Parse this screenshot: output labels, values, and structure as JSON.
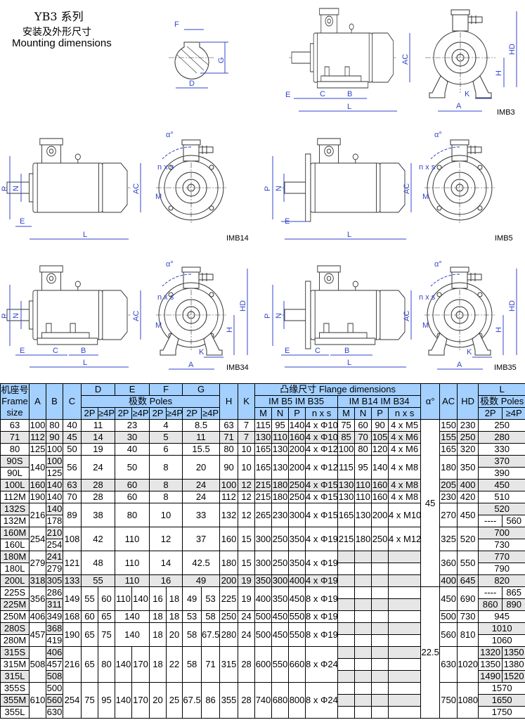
{
  "title": {
    "series": "YB3 系列",
    "cn": "安装及外形尺寸",
    "en": "Mounting dimensions"
  },
  "colors": {
    "dimension": "#3344cc",
    "header_bg": "#a3d0ff",
    "shade": "#e6e6e6"
  },
  "labels": {
    "F": "F",
    "G": "G",
    "D": "D",
    "E": "E",
    "C": "C",
    "B": "B",
    "L": "L",
    "AC": "AC",
    "HD": "HD",
    "H": "H",
    "K": "K",
    "A": "A",
    "P": "P",
    "N": "N",
    "M": "M",
    "nxs": "n x s",
    "alpha": "α°",
    "imb3": "IMB3",
    "imb14": "IMB14",
    "imb5": "IMB5",
    "imb34": "IMB34",
    "imb35": "IMB35"
  },
  "table": {
    "header": {
      "frame": [
        "机座号",
        "Frame",
        "size"
      ],
      "A": "A",
      "B": "B",
      "C": "C",
      "D": "D",
      "E": "E",
      "F": "F",
      "G": "G",
      "H": "H",
      "K": "K",
      "flange": "凸缘尺寸   Flange dimensions",
      "alpha": "α°",
      "AC": "AC",
      "HD": "HD",
      "L": "L",
      "poles": "极数    Poles",
      "poles_L": "极数 Poles",
      "b5": "IM B5    IM B35",
      "b14": "IM B14    IM B34",
      "p2": "2P",
      "p4": "≥4P",
      "M": "M",
      "N": "N",
      "P": "P",
      "nxs": "n x s"
    },
    "alpha": [
      {
        "value": "45",
        "group_count": 10
      },
      {
        "value": "22.5",
        "group_count": 5
      }
    ],
    "groups": [
      {
        "frames": [
          "63"
        ],
        "A": "100",
        "B": [
          "80"
        ],
        "C": "40",
        "D": [
          "11"
        ],
        "E": [
          "23"
        ],
        "F": [
          "4"
        ],
        "G": [
          "8.5"
        ],
        "H": "63",
        "K": "7",
        "b5": [
          "115",
          "95",
          "140",
          "4 x Φ10"
        ],
        "b14": [
          "75",
          "60",
          "90",
          "4 x M5"
        ],
        "AC": "150",
        "HD": "230",
        "L": [
          [
            "250"
          ]
        ]
      },
      {
        "frames": [
          "71"
        ],
        "A": "112",
        "B": [
          "90"
        ],
        "C": "45",
        "D": [
          "14"
        ],
        "E": [
          "30"
        ],
        "F": [
          "5"
        ],
        "G": [
          "11"
        ],
        "H": "71",
        "K": "7",
        "b5": [
          "130",
          "110",
          "160",
          "4 x Φ10"
        ],
        "b14": [
          "85",
          "70",
          "105",
          "4 x M6"
        ],
        "AC": "155",
        "HD": "250",
        "L": [
          [
            "280"
          ]
        ]
      },
      {
        "frames": [
          "80"
        ],
        "A": "125",
        "B": [
          "100"
        ],
        "C": "50",
        "D": [
          "19"
        ],
        "E": [
          "40"
        ],
        "F": [
          "6"
        ],
        "G": [
          "15.5"
        ],
        "H": "80",
        "K": "10",
        "b5": [
          "165",
          "130",
          "200",
          "4 x Φ12"
        ],
        "b14": [
          "100",
          "80",
          "120",
          "4 x M6"
        ],
        "AC": "165",
        "HD": "320",
        "L": [
          [
            "330"
          ]
        ]
      },
      {
        "frames": [
          "90S",
          "90L"
        ],
        "A": "140",
        "B": [
          "100",
          "125"
        ],
        "C": "56",
        "D": [
          "24"
        ],
        "E": [
          "50"
        ],
        "F": [
          "8"
        ],
        "G": [
          "20"
        ],
        "H": "90",
        "K": "10",
        "b5": [
          "165",
          "130",
          "200",
          "4 x Φ12"
        ],
        "b14": [
          "115",
          "95",
          "140",
          "4 x M8"
        ],
        "AC": "180",
        "HD": "350",
        "L": [
          [
            "370"
          ],
          [
            "390"
          ]
        ]
      },
      {
        "frames": [
          "100L"
        ],
        "A": "160",
        "B": [
          "140"
        ],
        "C": "63",
        "D": [
          "28"
        ],
        "E": [
          "60"
        ],
        "F": [
          "8"
        ],
        "G": [
          "24"
        ],
        "H": "100",
        "K": "12",
        "b5": [
          "215",
          "180",
          "250",
          "4 x Φ15"
        ],
        "b14": [
          "130",
          "110",
          "160",
          "4 x M8"
        ],
        "AC": "205",
        "HD": "400",
        "L": [
          [
            "450"
          ]
        ]
      },
      {
        "frames": [
          "112M"
        ],
        "A": "190",
        "B": [
          "140"
        ],
        "C": "70",
        "D": [
          "28"
        ],
        "E": [
          "60"
        ],
        "F": [
          "8"
        ],
        "G": [
          "24"
        ],
        "H": "112",
        "K": "12",
        "b5": [
          "215",
          "180",
          "250",
          "4 x Φ15"
        ],
        "b14": [
          "130",
          "110",
          "160",
          "4 x M8"
        ],
        "AC": "230",
        "HD": "420",
        "L": [
          [
            "510"
          ]
        ]
      },
      {
        "frames": [
          "132S",
          "132M"
        ],
        "A": "216",
        "B": [
          "140",
          "178"
        ],
        "C": "89",
        "D": [
          "38"
        ],
        "E": [
          "80"
        ],
        "F": [
          "10"
        ],
        "G": [
          "33"
        ],
        "H": "132",
        "K": "12",
        "b5": [
          "265",
          "230",
          "300",
          "4 x Φ15"
        ],
        "b14": [
          "165",
          "130",
          "200",
          "4 x M10"
        ],
        "AC": "270",
        "HD": "450",
        "L": [
          [
            "520"
          ],
          [
            "----",
            "560"
          ]
        ]
      },
      {
        "frames": [
          "160M",
          "160L"
        ],
        "A": "254",
        "B": [
          "210",
          "254"
        ],
        "C": "108",
        "D": [
          "42"
        ],
        "E": [
          "110"
        ],
        "F": [
          "12"
        ],
        "G": [
          "37"
        ],
        "H": "160",
        "K": "15",
        "b5": [
          "300",
          "250",
          "350",
          "4 x Φ19"
        ],
        "b14": [
          "215",
          "180",
          "250",
          "4 x M12"
        ],
        "AC": "325",
        "HD": "520",
        "L": [
          [
            "700"
          ],
          [
            "730"
          ]
        ]
      },
      {
        "frames": [
          "180M",
          "180L"
        ],
        "A": "279",
        "B": [
          "241",
          "279"
        ],
        "C": "121",
        "D": [
          "48"
        ],
        "E": [
          "110"
        ],
        "F": [
          "14"
        ],
        "G": [
          "42.5"
        ],
        "H": "180",
        "K": "15",
        "b5": [
          "300",
          "250",
          "350",
          "4 x Φ19"
        ],
        "b14": null,
        "AC": "360",
        "HD": "550",
        "L": [
          [
            "770"
          ],
          [
            "790"
          ]
        ]
      },
      {
        "frames": [
          "200L"
        ],
        "A": "318",
        "B": [
          "305"
        ],
        "C": "133",
        "D": [
          "55"
        ],
        "E": [
          "110"
        ],
        "F": [
          "16"
        ],
        "G": [
          "49"
        ],
        "H": "200",
        "K": "19",
        "b5": [
          "350",
          "300",
          "400",
          "4 x Φ19"
        ],
        "b14": null,
        "AC": "400",
        "HD": "645",
        "L": [
          [
            "820"
          ]
        ]
      },
      {
        "frames": [
          "225S",
          "225M"
        ],
        "A": "356",
        "B": [
          "286",
          "311"
        ],
        "C": "149",
        "D": [
          "55",
          "60"
        ],
        "E": [
          "110",
          "140"
        ],
        "F": [
          "16",
          "18"
        ],
        "G": [
          "49",
          "53"
        ],
        "H": "225",
        "K": "19",
        "b5": [
          "400",
          "350",
          "450",
          "8 x Φ19"
        ],
        "b14": null,
        "AC": "450",
        "HD": "690",
        "L": [
          [
            "----",
            "865"
          ],
          [
            "860",
            "890"
          ]
        ]
      },
      {
        "frames": [
          "250M"
        ],
        "A": "406",
        "B": [
          "349"
        ],
        "C": "168",
        "D": [
          "60",
          "65"
        ],
        "E": [
          "140"
        ],
        "F": [
          "18",
          "18"
        ],
        "G": [
          "53",
          "58"
        ],
        "H": "250",
        "K": "24",
        "b5": [
          "500",
          "450",
          "550",
          "8 x Φ19"
        ],
        "b14": null,
        "AC": "500",
        "HD": "730",
        "L": [
          [
            "945"
          ]
        ]
      },
      {
        "frames": [
          "280S",
          "280M"
        ],
        "A": "457",
        "B": [
          "368",
          "419"
        ],
        "C": "190",
        "D": [
          "65",
          "75"
        ],
        "E": [
          "140"
        ],
        "F": [
          "18",
          "20"
        ],
        "G": [
          "58",
          "67.5"
        ],
        "H": "280",
        "K": "24",
        "b5": [
          "500",
          "450",
          "550",
          "8 x Φ19"
        ],
        "b14": null,
        "AC": "560",
        "HD": "810",
        "L": [
          [
            "1010"
          ],
          [
            "1060"
          ]
        ]
      },
      {
        "frames": [
          "315S",
          "315M",
          "315L"
        ],
        "A": "508",
        "B": [
          "406",
          "457",
          "508"
        ],
        "C": "216",
        "D": [
          "65",
          "80"
        ],
        "E": [
          "140",
          "170"
        ],
        "F": [
          "18",
          "22"
        ],
        "G": [
          "58",
          "71"
        ],
        "H": "315",
        "K": "28",
        "b5": [
          "600",
          "550",
          "660",
          "8 x Φ24"
        ],
        "b14": null,
        "AC": "630",
        "HD": "1020",
        "L": [
          [
            "1320",
            "1350"
          ],
          [
            "1350",
            "1380"
          ],
          [
            "1490",
            "1520"
          ]
        ]
      },
      {
        "frames": [
          "355S",
          "355M",
          "355L"
        ],
        "A": "610",
        "B": [
          "500",
          "560",
          "630"
        ],
        "C": "254",
        "D": [
          "75",
          "95"
        ],
        "E": [
          "140",
          "170"
        ],
        "F": [
          "20",
          "25"
        ],
        "G": [
          "67.5",
          "86"
        ],
        "H": "355",
        "K": "28",
        "b5": [
          "740",
          "680",
          "800",
          "8 x Φ24"
        ],
        "b14": null,
        "AC": "750",
        "HD": "1080",
        "L": [
          [
            "1570"
          ],
          [
            "1650"
          ],
          [
            "1750"
          ]
        ]
      }
    ]
  }
}
